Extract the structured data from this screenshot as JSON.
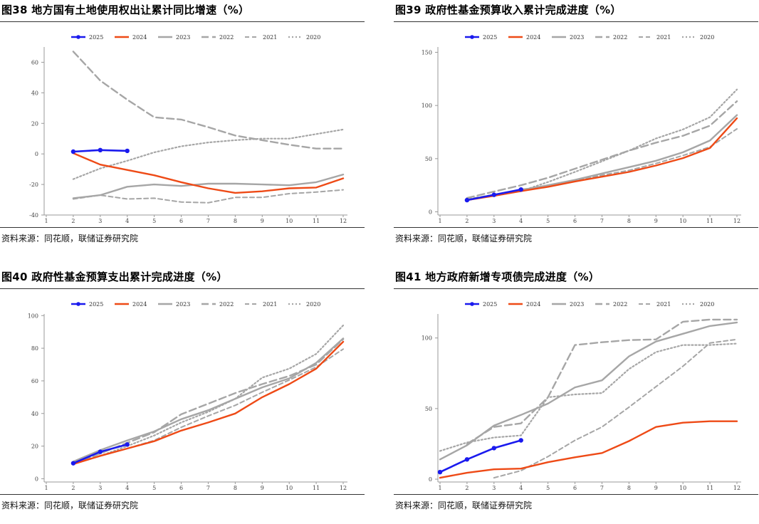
{
  "styles": {
    "2025": {
      "color": "#1a1aee",
      "dash": "",
      "width": 2.6,
      "marker": true
    },
    "2024": {
      "color": "#ee4a16",
      "dash": "",
      "width": 2.4,
      "marker": false
    },
    "2023": {
      "color": "#a6a6a6",
      "dash": "",
      "width": 2.4,
      "marker": false
    },
    "2022": {
      "color": "#a6a6a6",
      "dash": "10,5",
      "width": 2.4,
      "marker": false
    },
    "2021": {
      "color": "#a6a6a6",
      "dash": "6,4",
      "width": 2.0,
      "marker": false
    },
    "2020": {
      "color": "#a6a6a6",
      "dash": "2,3",
      "width": 2.2,
      "marker": false
    }
  },
  "charts": [
    {
      "id": "fig38",
      "title": "图38 地方国有土地使用权出让累计同比增速（%）",
      "source": "资料来源：同花顺，联储证券研究院",
      "chart_data": {
        "type": "line",
        "categories": [
          "1",
          "2",
          "3",
          "4",
          "5",
          "6",
          "7",
          "8",
          "9",
          "10",
          "11",
          "12"
        ],
        "ylim": [
          -40,
          70
        ],
        "yticks": [
          -40,
          -20,
          0,
          20,
          40,
          60
        ],
        "legend": "top",
        "series": [
          {
            "name": "2025",
            "values": [
              null,
              1.5,
              2.5,
              2,
              null,
              null,
              null,
              null,
              null,
              null,
              null,
              null
            ]
          },
          {
            "name": "2024",
            "values": [
              null,
              0.5,
              -7,
              -10.5,
              -14,
              -18.5,
              -22.5,
              -25.5,
              -24.5,
              -22.5,
              -22,
              -16
            ]
          },
          {
            "name": "2023",
            "values": [
              null,
              -29,
              -27,
              -21.5,
              -20,
              -21,
              -19.5,
              -19.5,
              -20,
              -20.5,
              -18.5,
              -13.5
            ]
          },
          {
            "name": "2022",
            "values": [
              null,
              67,
              48,
              35.5,
              24,
              22.5,
              17.5,
              12,
              9,
              6,
              3.5,
              3.5
            ]
          },
          {
            "name": "2021",
            "values": [
              null,
              -29.5,
              -27,
              -29.5,
              -29,
              -31.5,
              -32,
              -28.5,
              -28.5,
              -26,
              -25,
              -23.5
            ]
          },
          {
            "name": "2020",
            "values": [
              null,
              -16.5,
              -9.5,
              -4.5,
              1,
              5,
              7.5,
              9,
              10,
              10,
              13,
              16
            ]
          }
        ]
      }
    },
    {
      "id": "fig39",
      "title": "图39 政府性基金预算收入累计完成进度（%）",
      "source": "资料来源：同花顺，联储证券研究院",
      "chart_data": {
        "type": "line",
        "categories": [
          "1",
          "2",
          "3",
          "4",
          "5",
          "6",
          "7",
          "8",
          "9",
          "10",
          "11",
          "12"
        ],
        "ylim": [
          -3,
          155
        ],
        "yticks": [
          0,
          50,
          100,
          150
        ],
        "legend": "top",
        "series": [
          {
            "name": "2025",
            "values": [
              null,
              11,
              16,
              21,
              null,
              null,
              null,
              null,
              null,
              null,
              null,
              null
            ]
          },
          {
            "name": "2024",
            "values": [
              null,
              11,
              15,
              19.5,
              23.5,
              28.5,
              33,
              37.5,
              43.5,
              50.5,
              60,
              88
            ]
          },
          {
            "name": "2023",
            "values": [
              null,
              11,
              16,
              20.5,
              25,
              30,
              36,
              42,
              48,
              56,
              67,
              91
            ]
          },
          {
            "name": "2022",
            "values": [
              null,
              13,
              19,
              25,
              32,
              40.5,
              49,
              57.5,
              65,
              71.5,
              81,
              104
            ]
          },
          {
            "name": "2021",
            "values": [
              null,
              12,
              16,
              21,
              24.5,
              29,
              34.5,
              39,
              45.5,
              53,
              61,
              78
            ]
          },
          {
            "name": "2020",
            "values": [
              null,
              11.5,
              15,
              19.5,
              28,
              37.5,
              47.5,
              57.5,
              69,
              77.5,
              89,
              115
            ]
          }
        ]
      }
    },
    {
      "id": "fig40",
      "title": "图40 政府性基金预算支出累计完成进度（%）",
      "source": "资料来源：同花顺，联储证券研究院",
      "chart_data": {
        "type": "line",
        "categories": [
          "1",
          "2",
          "3",
          "4",
          "5",
          "6",
          "7",
          "8",
          "9",
          "10",
          "11",
          "12"
        ],
        "ylim": [
          -2,
          101
        ],
        "yticks": [
          0,
          20,
          40,
          60,
          80,
          100
        ],
        "legend": "top",
        "series": [
          {
            "name": "2025",
            "values": [
              null,
              9.5,
              16.5,
              21,
              null,
              null,
              null,
              null,
              null,
              null,
              null,
              null
            ]
          },
          {
            "name": "2024",
            "values": [
              null,
              9,
              14,
              18.5,
              23,
              29.5,
              34.5,
              40,
              50,
              58,
              67.5,
              84
            ]
          },
          {
            "name": "2023",
            "values": [
              null,
              10.5,
              17.5,
              23.5,
              29,
              36.5,
              42,
              49,
              56,
              61.5,
              71,
              86
            ]
          },
          {
            "name": "2022",
            "values": [
              null,
              9,
              15.5,
              22,
              28.5,
              39.5,
              46,
              52.5,
              58,
              63,
              70,
              85.5
            ]
          },
          {
            "name": "2021",
            "values": [
              null,
              9.5,
              14,
              18.5,
              23.5,
              31.5,
              38.5,
              45,
              53,
              60.5,
              68.5,
              79.5
            ]
          },
          {
            "name": "2020",
            "values": [
              null,
              9,
              14,
              20,
              26.5,
              34.5,
              41,
              49,
              62,
              67.5,
              76.5,
              94
            ]
          }
        ]
      }
    },
    {
      "id": "fig41",
      "title": "图41 地方政府新增专项债完成进度（%）",
      "source": "资料来源：同花顺，联储证券研究院",
      "chart_data": {
        "type": "line",
        "categories": [
          "1",
          "2",
          "3",
          "4",
          "5",
          "6",
          "7",
          "8",
          "9",
          "10",
          "11",
          "12"
        ],
        "ylim": [
          -2,
          117
        ],
        "yticks": [
          0,
          50,
          100
        ],
        "legend": "top",
        "series": [
          {
            "name": "2025",
            "values": [
              5,
              14,
              22,
              27.5,
              null,
              null,
              null,
              null,
              null,
              null,
              null,
              null
            ]
          },
          {
            "name": "2024",
            "values": [
              1,
              4.5,
              7,
              7.5,
              12,
              15.5,
              18.5,
              27,
              37,
              40,
              41,
              41
            ]
          },
          {
            "name": "2023",
            "values": [
              14,
              24,
              38,
              45.5,
              53.5,
              65,
              70,
              87,
              97.5,
              103,
              108.5,
              111
            ]
          },
          {
            "name": "2022",
            "values": [
              null,
              25,
              37,
              39.5,
              58,
              95,
              97,
              98.5,
              99,
              111.5,
              113,
              113
            ]
          },
          {
            "name": "2021",
            "values": [
              null,
              null,
              1,
              6,
              16,
              27.5,
              37,
              51,
              65.5,
              80,
              96.5,
              99
            ]
          },
          {
            "name": "2020",
            "values": [
              20,
              26,
              29.5,
              31,
              58,
              60,
              61,
              78,
              90,
              95,
              95,
              96
            ]
          }
        ]
      }
    }
  ]
}
